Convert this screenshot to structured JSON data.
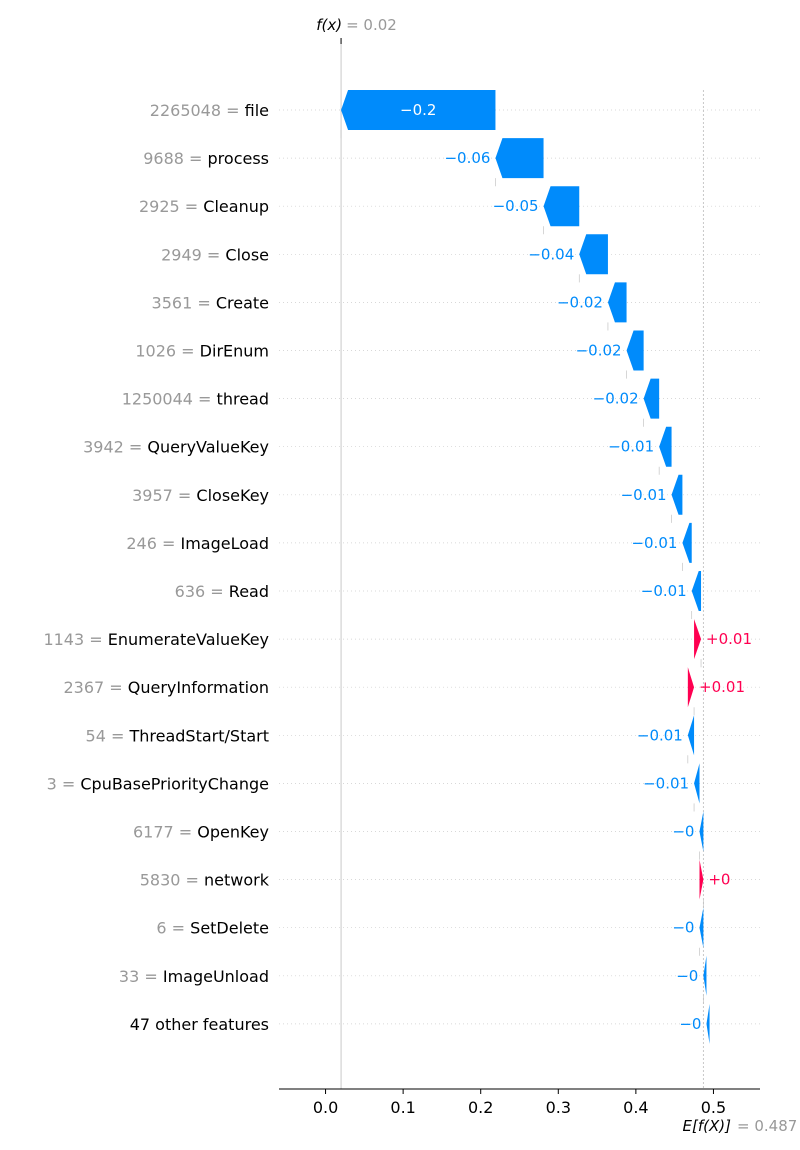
{
  "chart_data": {
    "type": "waterfall",
    "fx_label": "f(x)",
    "fx_value_text": "= 0.02",
    "fx": 0.02,
    "base_label": "E[f(X)]",
    "base_value_text": "= 0.487",
    "base_value": 0.487,
    "xlim": [
      -0.06,
      0.56
    ],
    "xticks": [
      {
        "value": 0.0,
        "label": "0.0"
      },
      {
        "value": 0.1,
        "label": "0.1"
      },
      {
        "value": 0.2,
        "label": "0.2"
      },
      {
        "value": 0.3,
        "label": "0.3"
      },
      {
        "value": 0.4,
        "label": "0.4"
      },
      {
        "value": 0.5,
        "label": "0.5"
      }
    ],
    "colors": {
      "negative": "#008bfb",
      "positive": "#ff0051",
      "muted": "#999999"
    },
    "features": [
      {
        "value_text": "2265048",
        "eq": "=",
        "name": "file",
        "shap": -0.2,
        "label": "−0.2",
        "start": 0.219,
        "end": 0.02
      },
      {
        "value_text": "9688",
        "eq": "=",
        "name": "process",
        "shap": -0.06,
        "label": "−0.06",
        "start": 0.281,
        "end": 0.219
      },
      {
        "value_text": "2925",
        "eq": "=",
        "name": "Cleanup",
        "shap": -0.05,
        "label": "−0.05",
        "start": 0.327,
        "end": 0.281
      },
      {
        "value_text": "2949",
        "eq": "=",
        "name": "Close",
        "shap": -0.04,
        "label": "−0.04",
        "start": 0.364,
        "end": 0.327
      },
      {
        "value_text": "3561",
        "eq": "=",
        "name": "Create",
        "shap": -0.02,
        "label": "−0.02",
        "start": 0.388,
        "end": 0.364
      },
      {
        "value_text": "1026",
        "eq": "=",
        "name": "DirEnum",
        "shap": -0.02,
        "label": "−0.02",
        "start": 0.41,
        "end": 0.388
      },
      {
        "value_text": "1250044",
        "eq": "=",
        "name": "thread",
        "shap": -0.02,
        "label": "−0.02",
        "start": 0.43,
        "end": 0.41
      },
      {
        "value_text": "3942",
        "eq": "=",
        "name": "QueryValueKey",
        "shap": -0.01,
        "label": "−0.01",
        "start": 0.446,
        "end": 0.43
      },
      {
        "value_text": "3957",
        "eq": "=",
        "name": "CloseKey",
        "shap": -0.01,
        "label": "−0.01",
        "start": 0.46,
        "end": 0.446
      },
      {
        "value_text": "246",
        "eq": "=",
        "name": "ImageLoad",
        "shap": -0.01,
        "label": "−0.01",
        "start": 0.472,
        "end": 0.46
      },
      {
        "value_text": "636",
        "eq": "=",
        "name": "Read",
        "shap": -0.01,
        "label": "−0.01",
        "start": 0.484,
        "end": 0.472
      },
      {
        "value_text": "1143",
        "eq": "=",
        "name": "EnumerateValueKey",
        "shap": 0.01,
        "label": "+0.01",
        "start": 0.475,
        "end": 0.484
      },
      {
        "value_text": "2367",
        "eq": "=",
        "name": "QueryInformation",
        "shap": 0.01,
        "label": "+0.01",
        "start": 0.467,
        "end": 0.475
      },
      {
        "value_text": "54",
        "eq": "=",
        "name": "ThreadStart/Start",
        "shap": -0.01,
        "label": "−0.01",
        "start": 0.475,
        "end": 0.467
      },
      {
        "value_text": "3",
        "eq": "=",
        "name": "CpuBasePriorityChange",
        "shap": -0.01,
        "label": "−0.01",
        "start": 0.482,
        "end": 0.475
      },
      {
        "value_text": "6177",
        "eq": "=",
        "name": "OpenKey",
        "shap": -0.0,
        "label": "−0",
        "start": 0.487,
        "end": 0.482
      },
      {
        "value_text": "5830",
        "eq": "=",
        "name": "network",
        "shap": 0.0,
        "label": "+0",
        "start": 0.482,
        "end": 0.487
      },
      {
        "value_text": "6",
        "eq": "=",
        "name": "SetDelete",
        "shap": -0.0,
        "label": "−0",
        "start": 0.487,
        "end": 0.482
      },
      {
        "value_text": "33",
        "eq": "=",
        "name": "ImageUnload",
        "shap": -0.0,
        "label": "−0",
        "start": 0.491,
        "end": 0.487
      },
      {
        "value_text": "",
        "eq": "",
        "name": "47 other features",
        "shap": -0.0,
        "label": "−0",
        "start": 0.495,
        "end": 0.491
      }
    ]
  }
}
